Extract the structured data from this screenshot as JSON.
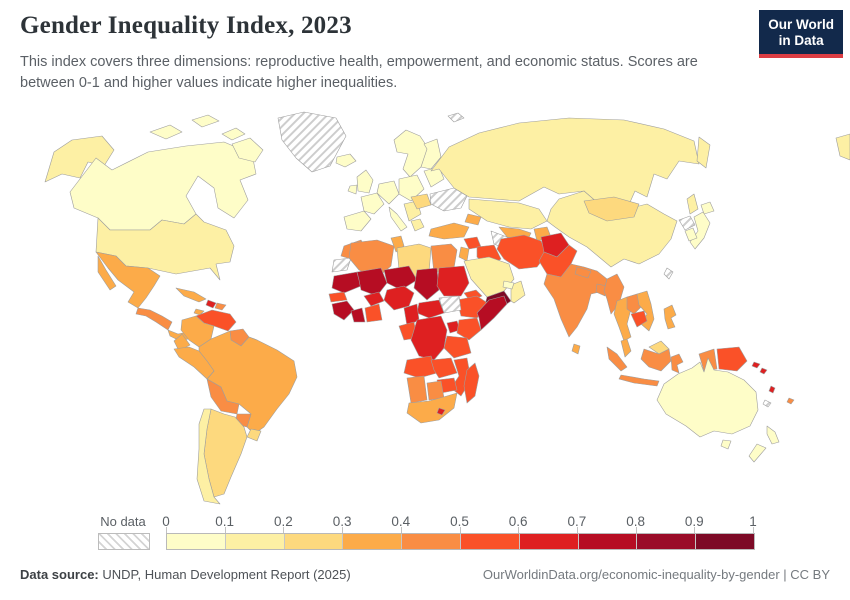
{
  "header": {
    "title": "Gender Inequality Index, 2023",
    "subtitle": "This index covers three dimensions: reproductive health, empowerment, and economic status. Scores are between 0-1 and higher values indicate higher inequalities.",
    "logo": {
      "line1": "Our World",
      "line2": "in Data",
      "bg": "#12294b",
      "accent": "#dc3d43"
    }
  },
  "legend": {
    "no_data_label": "No data",
    "ticks": [
      "0",
      "0.1",
      "0.2",
      "0.3",
      "0.4",
      "0.5",
      "0.6",
      "0.7",
      "0.8",
      "0.9",
      "1"
    ],
    "colors": [
      "#fefdc8",
      "#fdf0a4",
      "#fdd97e",
      "#fcab49",
      "#f98d44",
      "#fa5128",
      "#de2021",
      "#b60d23",
      "#9a0c28",
      "#7d0a26"
    ]
  },
  "footer": {
    "source_label": "Data source:",
    "source_value": " UNDP, Human Development Report (2025)",
    "credit": "OurWorldinData.org/economic-inequality-by-gender | CC BY"
  },
  "map": {
    "ocean_color": "#ffffff",
    "border_color": "#9e9e9e",
    "region_bins": {
      "canada": 0,
      "iceland": 0,
      "uk": 0,
      "ireland": 0,
      "scandinavia": 0,
      "finland": 0,
      "iberia": 0,
      "france": 0,
      "germany": 0,
      "italy": 0,
      "poland": 0,
      "baltics": 0,
      "japan": 0,
      "south-korea": 0,
      "australia": 0,
      "tasmania": 0,
      "new-zealand": 0,
      "uae": 0,
      "usa": 1,
      "alaska": 1,
      "chile": 1,
      "russia": 1,
      "kamchatka": 1,
      "sakhalin": 1,
      "chukotka": 1,
      "kazakhstan": 1,
      "china": 1,
      "saudi-arabia": 1,
      "oman": 1,
      "balkans": 1,
      "greece": 1,
      "argentina": 2,
      "uruguay": 2,
      "mongolia": 2,
      "romania": 2,
      "libya": 2,
      "malaysia-borneo": 2,
      "mexico": 3,
      "panama-costa-rica": 3,
      "cuba": 3,
      "jamaica": 3,
      "colombia": 3,
      "ecuador": 3,
      "peru": 3,
      "brazil": 3,
      "turkey": 3,
      "levant": 3,
      "caucasus": 3,
      "uzbekistan": 3,
      "kyrgyz-tajik": 3,
      "sri-lanka": 3,
      "thailand": 3,
      "vietnam": 3,
      "malaysia": 3,
      "philippines": 3,
      "tunisia": 3,
      "south-africa": 3,
      "central-america": 4,
      "dominican-republic": 4,
      "guyana-suriname": 4,
      "bolivia": 4,
      "paraguay": 4,
      "india": 4,
      "nepal": 4,
      "bangladesh": 4,
      "myanmar": 4,
      "laos": 4,
      "sumatra": 4,
      "java": 4,
      "kalimantan": 4,
      "sulawesi": 4,
      "west-papua": 4,
      "morocco": 4,
      "algeria": 4,
      "egypt": 4,
      "namibia": 4,
      "botswana": 4,
      "fiji": 4,
      "venezuela": 5,
      "iraq": 5,
      "iran": 5,
      "syria": 5,
      "pakistan": 5,
      "cambodia": 5,
      "png": 5,
      "senegal": 5,
      "ghana-togo": 5,
      "eritrea": 5,
      "ethiopia": 5,
      "kenya": 5,
      "tanzania": 5,
      "angola": 5,
      "zambia": 5,
      "mozambique": 5,
      "zimbabwe": 5,
      "madagascar": 5,
      "gabon-congo": 5,
      "haiti": 6,
      "afghanistan": 6,
      "sudan": 6,
      "nigeria": 6,
      "burkina": 6,
      "car": 6,
      "cameroon": 6,
      "drc": 6,
      "uganda": 6,
      "lesotho": 6,
      "solomon": 6,
      "vanuatu": 6,
      "mauritania": 7,
      "mali": 7,
      "niger": 7,
      "chad": 7,
      "guinea-group": 7,
      "ivory-coast": 7,
      "somalia": 7,
      "yemen": 9,
      "greenland": "nd",
      "ukraine": "nd",
      "turkmenistan": "nd",
      "south-sudan": "nd",
      "western-sahara": "nd",
      "north-korea": "nd",
      "french-guiana": "nd",
      "svalbard": "nd",
      "new-caledonia": "nd",
      "taiwan": "nd"
    }
  },
  "chart_data": {
    "type": "heatmap",
    "variant": "choropleth_world_map",
    "title": "Gender Inequality Index, 2023",
    "value_range": [
      0,
      1
    ],
    "legend_position": "bottom",
    "bins": [
      "0–0.1",
      "0.1–0.2",
      "0.2–0.3",
      "0.3–0.4",
      "0.4–0.5",
      "0.5–0.6",
      "0.6–0.7",
      "0.7–0.8",
      "0.8–0.9",
      "0.9–1"
    ],
    "bin_colors": [
      "#fefdc8",
      "#fdf0a4",
      "#fdd97e",
      "#fcab49",
      "#f98d44",
      "#fa5128",
      "#de2021",
      "#b60d23",
      "#9a0c28",
      "#7d0a26"
    ],
    "no_data": {
      "label": "No data",
      "style": "gray diagonal hatch",
      "regions": [
        "Greenland",
        "Ukraine",
        "Turkmenistan",
        "South Sudan",
        "Western Sahara",
        "North Korea",
        "French Guiana",
        "Svalbard",
        "New Caledonia",
        "Taiwan"
      ]
    },
    "regions_by_bin": {
      "0–0.1": [
        "Canada",
        "Iceland",
        "United Kingdom",
        "Ireland",
        "Norway/Sweden",
        "Finland",
        "Spain/Portugal",
        "France",
        "Germany",
        "Italy",
        "Poland/Central Europe",
        "Baltics/Belarus",
        "Japan",
        "South Korea",
        "Australia",
        "New Zealand",
        "United Arab Emirates"
      ],
      "0.1–0.2": [
        "United States",
        "Chile",
        "Russia",
        "Kazakhstan",
        "China",
        "Saudi Arabia",
        "Oman",
        "Balkans",
        "Greece"
      ],
      "0.2–0.3": [
        "Argentina",
        "Uruguay",
        "Mongolia",
        "Romania/Hungary",
        "Libya",
        "Malaysia (Borneo)"
      ],
      "0.3–0.4": [
        "Mexico",
        "Panama/Costa Rica",
        "Cuba",
        "Jamaica",
        "Colombia",
        "Ecuador",
        "Peru",
        "Brazil",
        "Turkey",
        "Jordan/Levant",
        "Caucasus",
        "Uzbekistan",
        "Kyrgyzstan/Tajikistan",
        "Sri Lanka",
        "Thailand",
        "Vietnam",
        "Malaysia",
        "Philippines",
        "Tunisia",
        "South Africa"
      ],
      "0.4–0.5": [
        "Central America",
        "Dominican Republic",
        "Guyana/Suriname",
        "Bolivia",
        "Paraguay",
        "India",
        "Nepal",
        "Bangladesh",
        "Myanmar",
        "Laos",
        "Indonesia",
        "Morocco",
        "Algeria",
        "Egypt",
        "Namibia",
        "Botswana",
        "Fiji"
      ],
      "0.5–0.6": [
        "Venezuela",
        "Iraq",
        "Iran",
        "Syria",
        "Pakistan",
        "Cambodia",
        "Papua New Guinea",
        "Senegal",
        "Ghana/Togo/Benin",
        "Eritrea/Djibouti",
        "Ethiopia",
        "Kenya",
        "Tanzania",
        "Angola",
        "Zambia",
        "Mozambique/Malawi",
        "Zimbabwe",
        "Madagascar",
        "Gabon/Congo"
      ],
      "0.6–0.7": [
        "Haiti",
        "Afghanistan",
        "Sudan",
        "Nigeria",
        "Burkina Faso",
        "Central African Republic",
        "Cameroon",
        "DR Congo",
        "Uganda",
        "Lesotho",
        "Solomon Islands",
        "Vanuatu"
      ],
      "0.7–0.8": [
        "Mauritania",
        "Mali",
        "Niger",
        "Chad",
        "Guinea/Sierra Leone/Liberia",
        "Côte d'Ivoire",
        "Somalia"
      ],
      "0.8–0.9": [],
      "0.9–1": [
        "Yemen"
      ]
    }
  }
}
